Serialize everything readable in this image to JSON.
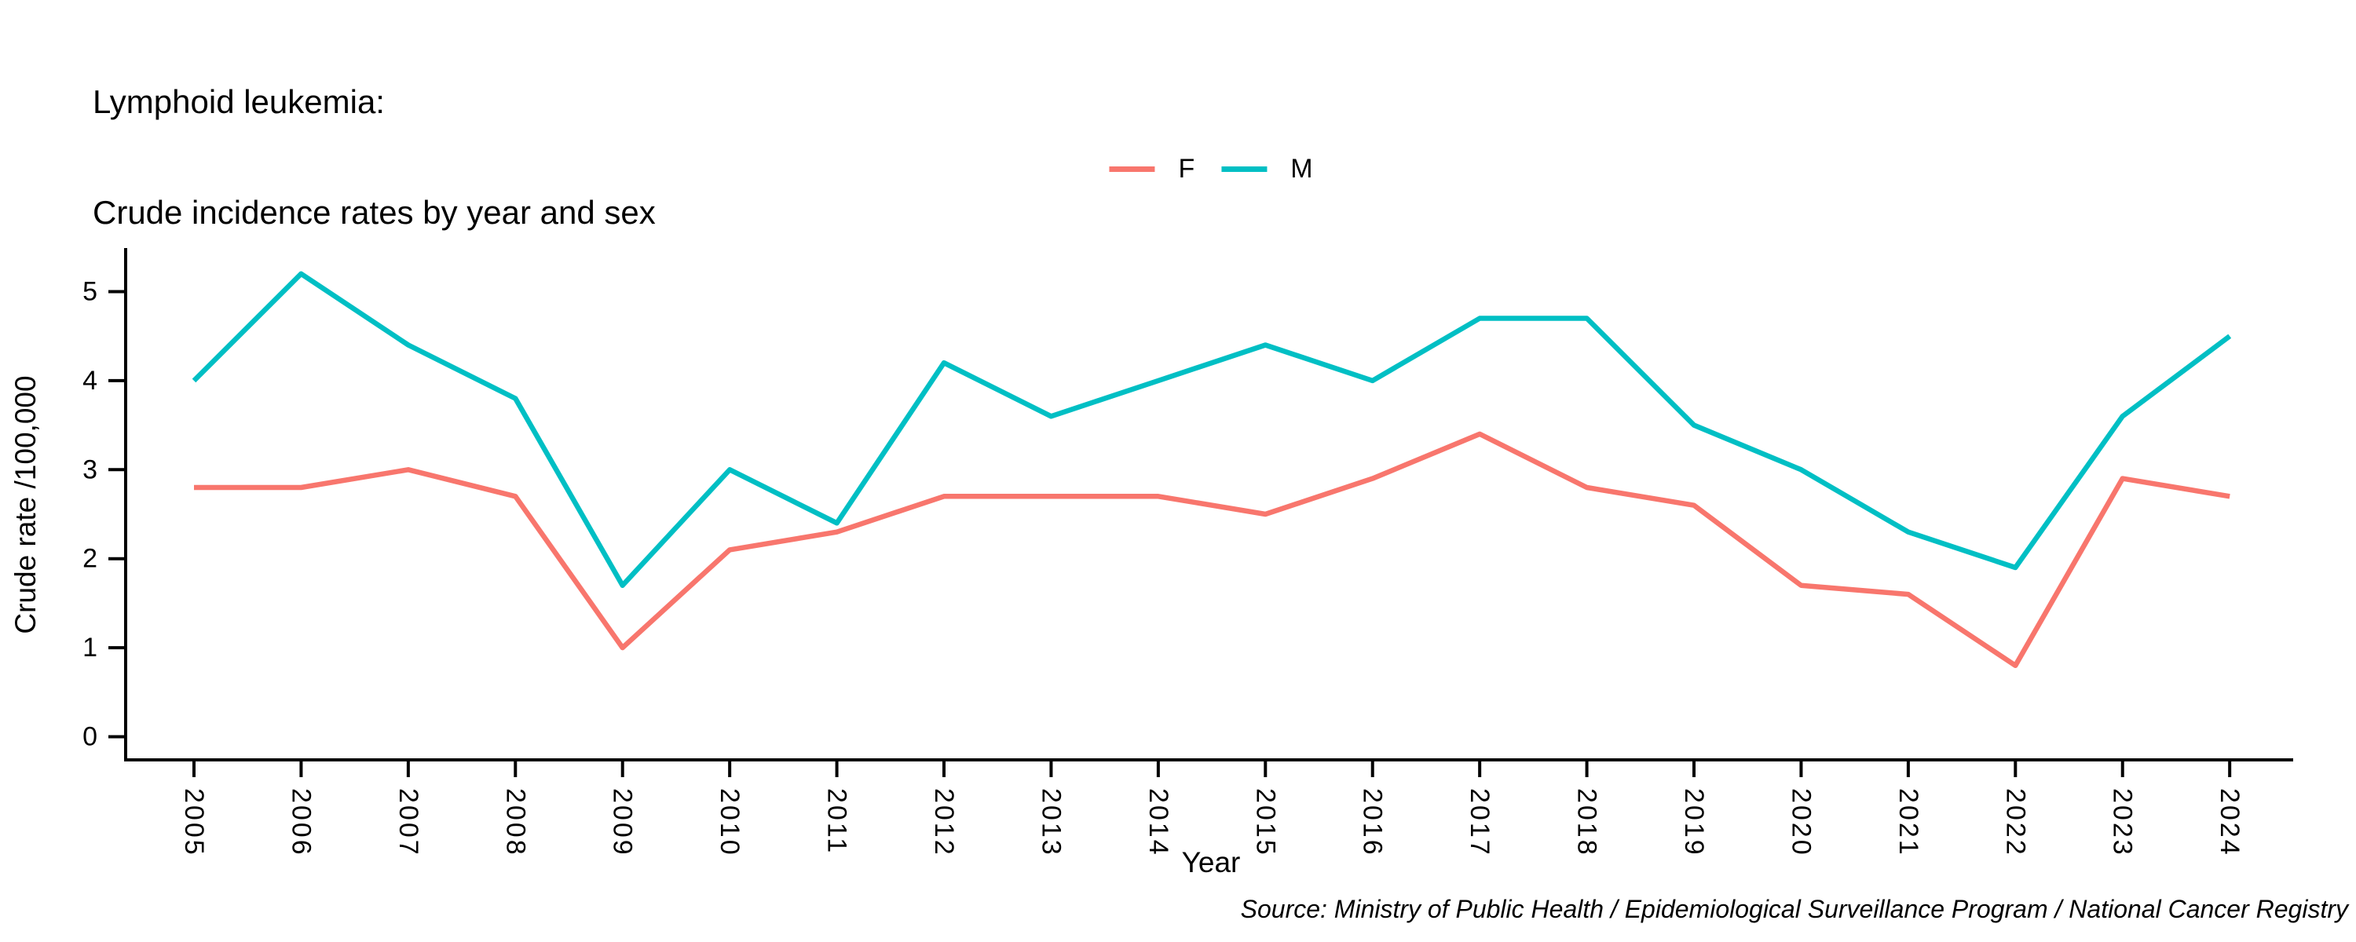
{
  "title": {
    "line1": "Lymphoid leukemia:",
    "line2": "Crude incidence rates by year and sex"
  },
  "legend": {
    "items": [
      {
        "label": "F",
        "color": "#F8766D"
      },
      {
        "label": "M",
        "color": "#00BFC4"
      }
    ]
  },
  "axes": {
    "x": {
      "title": "Year",
      "ticks": [
        "2005",
        "2006",
        "2007",
        "2008",
        "2009",
        "2010",
        "2011",
        "2012",
        "2013",
        "2014",
        "2015",
        "2016",
        "2017",
        "2018",
        "2019",
        "2020",
        "2021",
        "2022",
        "2023",
        "2024"
      ]
    },
    "y": {
      "title": "Crude rate /100,000",
      "ticks": [
        "0",
        "1",
        "2",
        "3",
        "4",
        "5"
      ]
    }
  },
  "source": "Source: Ministry of Public Health / Epidemiological Surveillance Program / National Cancer Registry",
  "chart_data": {
    "type": "line",
    "title": "Lymphoid leukemia: Crude incidence rates by year and sex",
    "xlabel": "Year",
    "ylabel": "Crude rate /100,000",
    "x": [
      2005,
      2006,
      2007,
      2008,
      2009,
      2010,
      2011,
      2012,
      2013,
      2014,
      2015,
      2016,
      2017,
      2018,
      2019,
      2020,
      2021,
      2022,
      2023,
      2024
    ],
    "series": [
      {
        "name": "F",
        "color": "#F8766D",
        "values": [
          2.8,
          2.8,
          3.0,
          2.7,
          1.0,
          2.1,
          2.3,
          2.7,
          2.7,
          2.7,
          2.5,
          2.9,
          3.4,
          2.8,
          2.6,
          1.7,
          1.6,
          0.8,
          2.9,
          2.7
        ]
      },
      {
        "name": "M",
        "color": "#00BFC4",
        "values": [
          4.0,
          5.2,
          4.4,
          3.8,
          1.7,
          3.0,
          2.4,
          4.2,
          3.6,
          4.0,
          4.4,
          4.0,
          4.7,
          4.7,
          3.5,
          3.0,
          2.3,
          1.9,
          3.6,
          4.5
        ]
      }
    ],
    "ylim": [
      0,
      5.2
    ],
    "yticks": [
      0,
      1,
      2,
      3,
      4,
      5
    ],
    "grid": false,
    "legend_position": "top-center",
    "axis_color": "#000000",
    "text_color": "#000000"
  }
}
